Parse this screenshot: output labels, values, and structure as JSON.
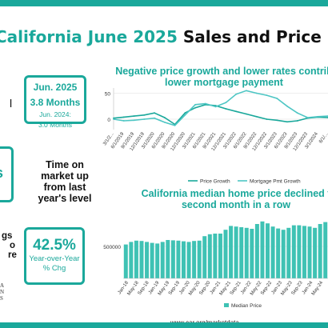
{
  "header": {
    "title_region": "California",
    "title_month": "June 2025",
    "title_rest": "Sales and Price Report"
  },
  "left": {
    "frag_l": "l",
    "months_box": {
      "big_line1": "Jun. 2025",
      "big_line2": "3.8 Months",
      "small_line1": "Jun. 2024:",
      "small_line2": "3.0 Months"
    },
    "frag_s": "s",
    "tom_line1": "Time on",
    "tom_line2": "market up",
    "tom_line3": "from last",
    "tom_line4": "year's level",
    "ings_line1": "gs",
    "ings_line2": "o",
    "ings_line3": "re",
    "pct_box": {
      "value": "42.5%",
      "label_line1": "Year-over-Year",
      "label_line2": "% Chg"
    },
    "logo_line1": "A",
    "logo_line2": "N",
    "logo_line3": "S"
  },
  "colors": {
    "teal": "#1aa89b",
    "lightteal": "#4ec6c4",
    "bar": "#3fc2b4"
  },
  "footer": {
    "url": "www.car.org/marketdata"
  },
  "chart_data": [
    {
      "type": "line",
      "title_line1": "Negative price growth and lower rates contrib",
      "title_line2": "lower mortgage payment",
      "ylim": [
        -20,
        60
      ],
      "yticks": [
        0,
        50
      ],
      "x": [
        "3/1/2019",
        "6/1/2019",
        "9/1/2019",
        "12/1/2019",
        "3/1/2020",
        "6/1/2020",
        "9/1/2020",
        "12/1/2020",
        "3/1/2021",
        "6/1/2021",
        "9/1/2021",
        "12/1/2021",
        "3/1/2022",
        "6/1/2022",
        "9/1/2022",
        "12/1/2022",
        "3/1/2023",
        "6/1/2023",
        "9/1/2023",
        "12/1/2023",
        "3/1/2024",
        "6/1/2024"
      ],
      "x_labels": [
        "3/1/2...",
        "6/1/2019",
        "9/1/2019",
        "12/1/2019",
        "3/1/2020",
        "6/1/2020",
        "9/1/2020",
        "12/1/2020",
        "3/1/2021",
        "6/1/2021",
        "9/1/2021",
        "12/1/2021",
        "3/1/2022",
        "6/1/2022",
        "9/1/2022",
        "12/1/2022",
        "3/1/2023",
        "6/1/2023",
        "9/1/2023",
        "12/1/2023",
        "3/1/2024",
        "6/1/..."
      ],
      "series": [
        {
          "name": "Price Growth",
          "color": "#1aa89b",
          "values": [
            2,
            4,
            6,
            8,
            12,
            3,
            -10,
            12,
            22,
            28,
            26,
            20,
            15,
            10,
            5,
            0,
            -2,
            -5,
            -3,
            2,
            4,
            3
          ]
        },
        {
          "name": "Mortgage Pmt Growth",
          "color": "#4ec6c4",
          "values": [
            0,
            -3,
            -2,
            0,
            2,
            -6,
            -12,
            8,
            28,
            30,
            24,
            32,
            48,
            55,
            50,
            46,
            40,
            25,
            12,
            3,
            5,
            6
          ]
        }
      ]
    },
    {
      "type": "bar",
      "title_line1": "California median home price declined f",
      "title_line2": "second month in a row",
      "ylim": [
        0,
        1000000
      ],
      "yticks": [
        500000
      ],
      "categories": [
        "Jan-18",
        "Mar-18",
        "May-18",
        "Jul-18",
        "Sep-18",
        "Nov-18",
        "Jan-19",
        "Mar-19",
        "May-19",
        "Jul-19",
        "Sep-19",
        "Nov-19",
        "Jan-20",
        "Mar-20",
        "May-20",
        "Jul-20",
        "Sep-20",
        "Nov-20",
        "Jan-21",
        "Mar-21",
        "May-21",
        "Jul-21",
        "Sep-21",
        "Nov-21",
        "Jan-22",
        "Mar-22",
        "May-22",
        "Jul-22",
        "Sep-22",
        "Nov-22",
        "Jan-23",
        "Mar-23",
        "May-23",
        "Jul-23",
        "Sep-23",
        "Nov-23",
        "Jan-24",
        "Mar-24",
        "May-24"
      ],
      "x_labels": [
        "Jan-18",
        "May-18",
        "Sep-18",
        "Jan-19",
        "May-19",
        "Sep-19",
        "Jan-20",
        "May-20",
        "Sep-20",
        "Jan-21",
        "May-21",
        "Sep-21",
        "Jan-22",
        "May-22",
        "Sep-22",
        "Jan-23",
        "May-23",
        "Sep-23",
        "Jan-24",
        "May-24"
      ],
      "values": [
        530000,
        570000,
        590000,
        585000,
        570000,
        555000,
        545000,
        570000,
        600000,
        595000,
        590000,
        580000,
        570000,
        585000,
        590000,
        660000,
        690000,
        700000,
        700000,
        760000,
        820000,
        810000,
        800000,
        790000,
        775000,
        850000,
        890000,
        860000,
        810000,
        780000,
        760000,
        790000,
        830000,
        830000,
        820000,
        810000,
        790000,
        850000,
        880000
      ],
      "series": [
        {
          "name": "Median Price",
          "color": "#3fc2b4"
        }
      ]
    }
  ]
}
